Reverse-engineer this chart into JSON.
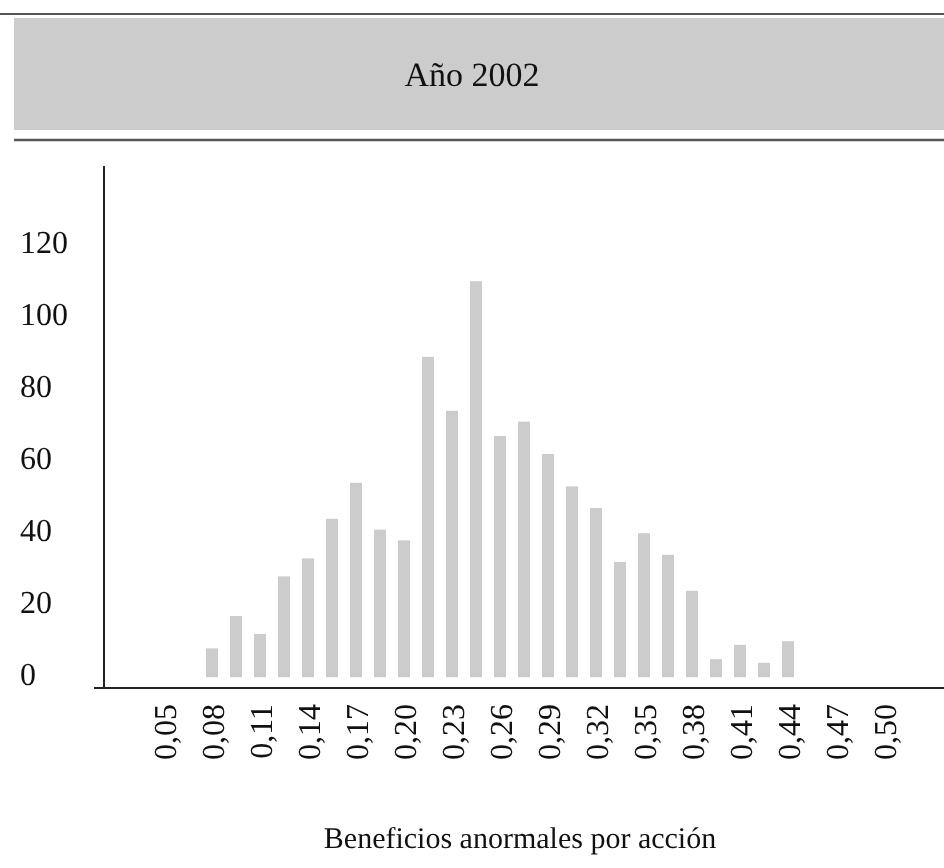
{
  "chart_data": {
    "type": "bar",
    "title": "Año 2002",
    "xlabel": "Beneficios anormales por acción",
    "categories": [
      "0,05",
      null,
      "0,08",
      null,
      "0,11",
      null,
      "0,14",
      null,
      "0,17",
      null,
      "0,20",
      null,
      "0,23",
      null,
      "0,26",
      null,
      "0,29",
      null,
      "0,32",
      null,
      "0,35",
      null,
      "0,38",
      null,
      "0,41",
      null,
      "0,44",
      null,
      "0,47",
      null,
      "0,50"
    ],
    "values": [
      null,
      null,
      8,
      17,
      12,
      28,
      33,
      44,
      54,
      41,
      38,
      89,
      74,
      110,
      67,
      71,
      62,
      53,
      47,
      32,
      40,
      34,
      24,
      5,
      9,
      4,
      10,
      null,
      null,
      null,
      null
    ],
    "color": "#cccccc",
    "ylim": [
      -3,
      142
    ],
    "yticks": [
      0,
      20,
      40,
      60,
      80,
      100,
      120
    ],
    "grid": false
  }
}
